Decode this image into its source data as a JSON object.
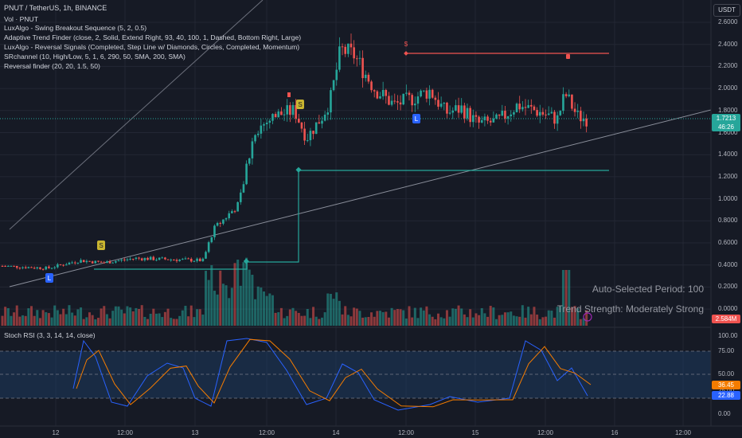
{
  "header": {
    "symbol_line": "PNUT / TetherUS, 1h, BINANCE",
    "currency": "USDT"
  },
  "indicators": [
    "Vol · PNUT",
    "LuxAlgo - Swing Breakout Sequence (5, 2, 0.5)",
    "Adaptive Trend Finder (close, 2, Solid, Extend Right, 93, 40, 100, 1, Dashed, Bottom Right, Large)",
    "LuxAlgo - Reversal Signals (Completed, Step Line w/ Diamonds, Circles, Completed, Momentum)",
    "SRchannel (10, High/Low, 5, 1, 6, 290, 50, SMA, 200, SMA)",
    "Reversal finder (20, 20, 1.5, 50)"
  ],
  "price_axis": [
    "2.6000",
    "2.4000",
    "2.2000",
    "2.0000",
    "1.8000",
    "1.6000",
    "1.4000",
    "1.2000",
    "1.0000",
    "0.8000",
    "0.6000",
    "0.4000",
    "0.2000",
    "0.0000"
  ],
  "price_badge": {
    "price": "1.7213",
    "countdown": "46:26",
    "color": "#26a69a"
  },
  "volume_badge": {
    "value": "2.584M",
    "color": "#ef5350"
  },
  "trend_info": {
    "period": "Auto-Selected Period: 100",
    "strength": "Trend Strength: Moderately Strong"
  },
  "stoch": {
    "title": "Stoch RSI (3, 3, 14, 14, close)",
    "axis": [
      "100.00",
      "75.00",
      "50.00",
      "25.00",
      "0.00"
    ],
    "k_badge": "36.45",
    "d_badge": "22.88",
    "k_color": "#f57c00",
    "d_color": "#2962ff"
  },
  "time_axis": [
    "12",
    "12:00",
    "13",
    "12:00",
    "14",
    "12:00",
    "15",
    "12:00",
    "16",
    "12:00"
  ],
  "markers": {
    "L": "L",
    "S": "S",
    "dollar": "$"
  },
  "colors": {
    "up": "#26a69a",
    "down": "#ef5350",
    "background": "#161a25",
    "stoch_band": "#1d3a5f"
  }
}
